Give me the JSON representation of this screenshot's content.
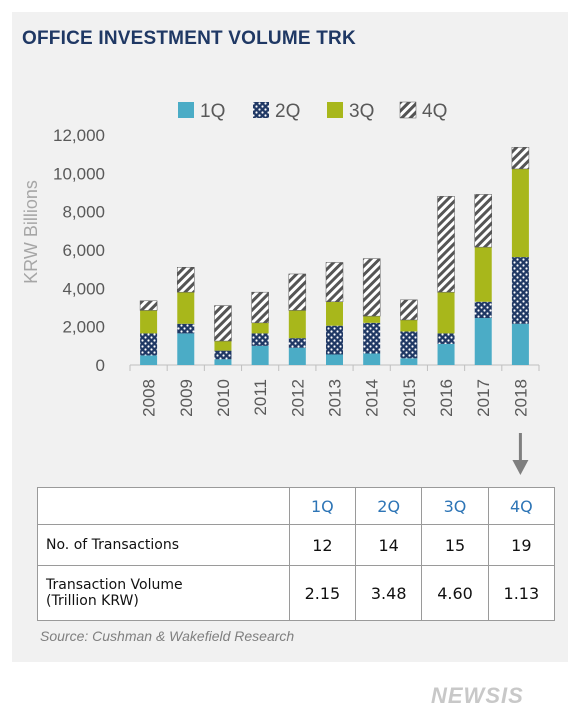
{
  "chart_data": {
    "type": "bar",
    "stacked": true,
    "title": "OFFICE INVESTMENT VOLUME TRK",
    "ylabel": "KRW Billions",
    "ylim": [
      0,
      12000
    ],
    "yticks": [
      "0",
      "2,000",
      "4,000",
      "6,000",
      "8,000",
      "10,000",
      "12,000"
    ],
    "ytick_values": [
      0,
      2000,
      4000,
      6000,
      8000,
      10000,
      12000
    ],
    "legend_position": "top",
    "categories": [
      "2008",
      "2009",
      "2010",
      "2011",
      "2012",
      "2013",
      "2014",
      "2015",
      "2016",
      "2017",
      "2018"
    ],
    "series": [
      {
        "name": "1Q",
        "color": "#4bacc6",
        "pattern": "solid",
        "values": [
          500,
          1650,
          300,
          1000,
          900,
          550,
          600,
          350,
          1100,
          2450,
          2150
        ]
      },
      {
        "name": "2Q",
        "color": "#1f3864",
        "pattern": "dots",
        "values": [
          1150,
          500,
          450,
          650,
          500,
          1500,
          1600,
          1400,
          550,
          850,
          3480
        ]
      },
      {
        "name": "3Q",
        "color": "#a8b71b",
        "pattern": "solid",
        "values": [
          1200,
          1650,
          500,
          550,
          1450,
          1250,
          350,
          600,
          2150,
          2850,
          4600
        ]
      },
      {
        "name": "4Q",
        "color": "#555555",
        "pattern": "hatch",
        "values": [
          500,
          1300,
          1850,
          1600,
          1900,
          2050,
          3000,
          1050,
          5000,
          2750,
          1130
        ]
      }
    ],
    "arrow_marker": "2018"
  },
  "table": {
    "headers": [
      "1Q",
      "2Q",
      "3Q",
      "4Q"
    ],
    "rows": [
      {
        "label": "No. of Transactions",
        "values": [
          "12",
          "14",
          "15",
          "19"
        ]
      },
      {
        "label_line1": "Transaction Volume",
        "label_line2": "(Trillion KRW)",
        "values": [
          "2.15",
          "3.48",
          "4.60",
          "1.13"
        ]
      }
    ]
  },
  "source": "Source: Cushman & Wakefield Research",
  "watermark": "NEWSIS"
}
